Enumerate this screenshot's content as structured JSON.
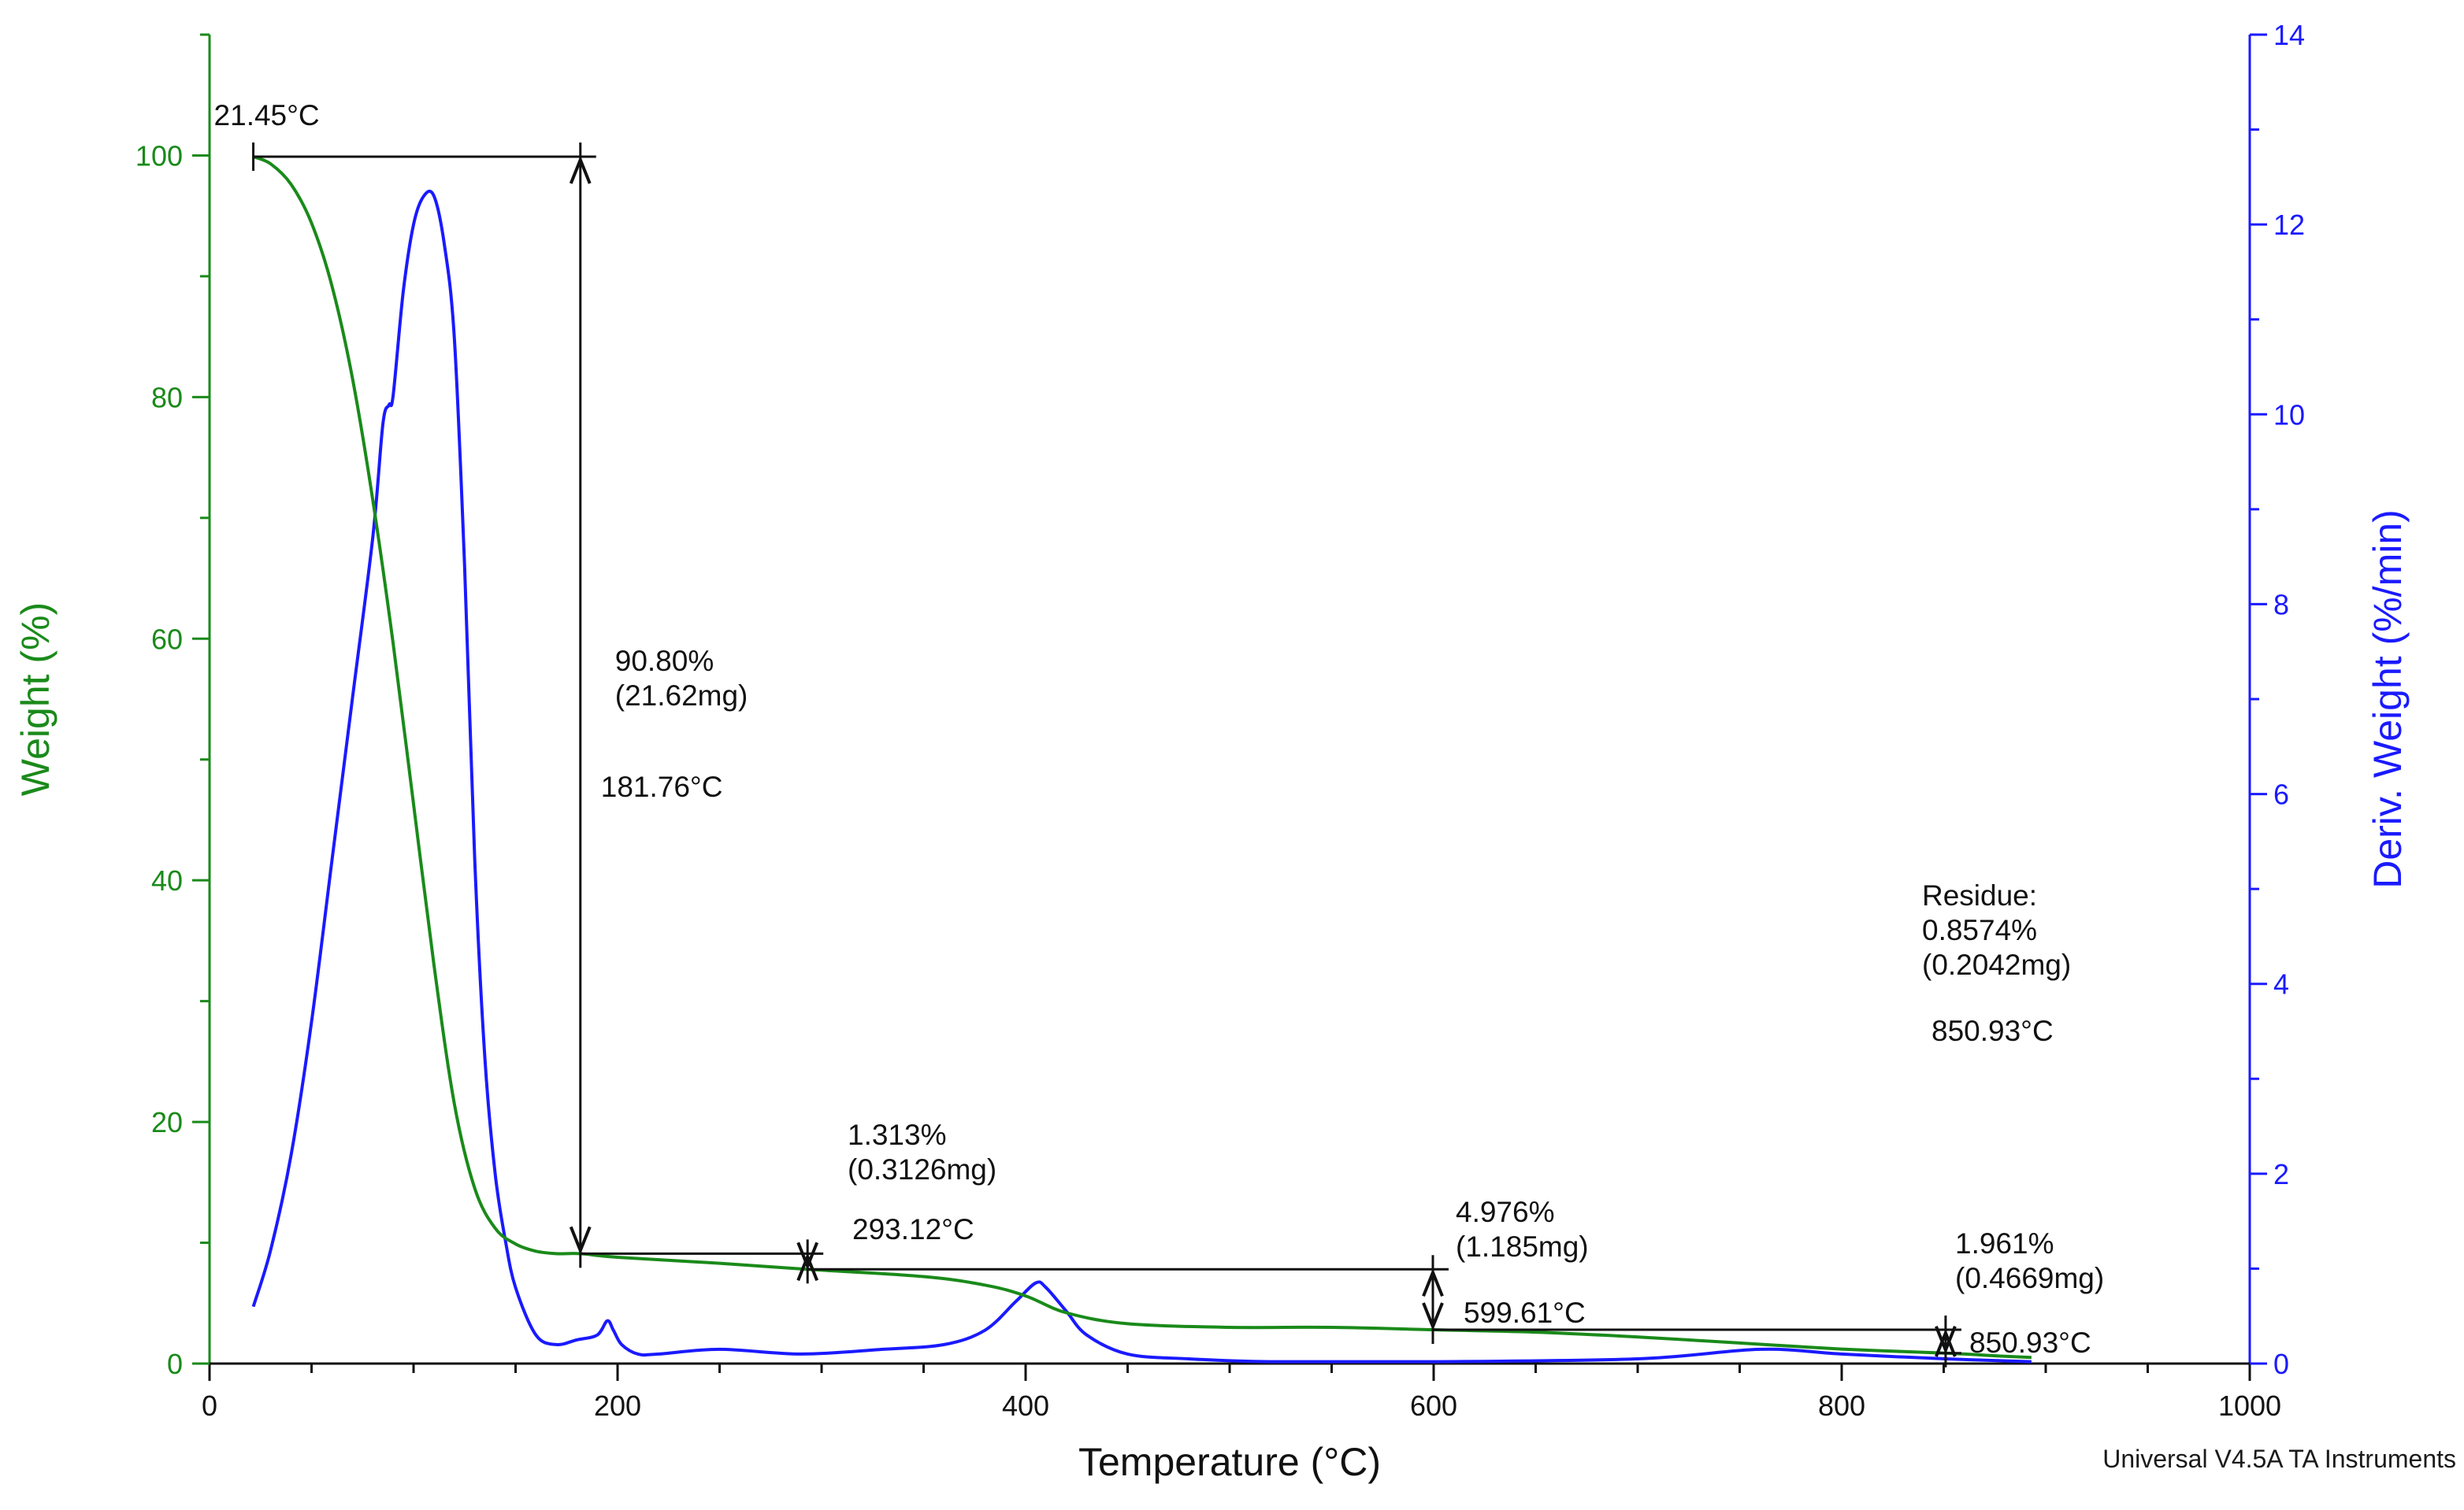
{
  "chart_data": {
    "type": "line",
    "title": "",
    "xlabel": "Temperature (°C)",
    "ylabel_left": "Weight (%)",
    "ylabel_right": "Deriv. Weight (%/min)",
    "xlim": [
      0,
      1000
    ],
    "ylim_left": [
      0,
      110
    ],
    "ylim_right": [
      0,
      14
    ],
    "x_ticks": [
      0,
      200,
      400,
      600,
      800,
      1000
    ],
    "y_left_ticks": [
      0,
      20,
      40,
      60,
      80,
      100
    ],
    "y_right_ticks": [
      0,
      2,
      4,
      6,
      8,
      10,
      12,
      14
    ],
    "grid": false,
    "colors": {
      "weight": "#1a8a1a",
      "deriv": "#1a1aff",
      "annotation": "#111111"
    },
    "series": [
      {
        "name": "Weight (%)",
        "axis": "left",
        "x": [
          21.45,
          30,
          40,
          50,
          60,
          70,
          80,
          90,
          100,
          110,
          120,
          130,
          140,
          150,
          160,
          170,
          181.76,
          200,
          250,
          293.12,
          350,
          380,
          400,
          420,
          450,
          500,
          550,
          599.61,
          650,
          700,
          750,
          800,
          850.93,
          880,
          893
        ],
        "values": [
          99.9,
          99.3,
          97.6,
          94.4,
          89.2,
          81.6,
          71.5,
          59.6,
          46.3,
          33.0,
          21.5,
          14.5,
          11.2,
          9.9,
          9.3,
          9.1,
          9.1,
          8.8,
          8.3,
          7.8,
          7.2,
          6.5,
          5.6,
          4.2,
          3.3,
          3.0,
          3.0,
          2.8,
          2.6,
          2.2,
          1.7,
          1.2,
          0.86,
          0.6,
          0.5
        ]
      },
      {
        "name": "Deriv. Weight (%/min)",
        "axis": "right",
        "x": [
          21.45,
          30,
          40,
          50,
          60,
          70,
          80,
          85,
          88,
          90,
          95,
          100,
          105,
          110,
          115,
          120,
          125,
          130,
          135,
          140,
          145,
          150,
          160,
          170,
          180,
          190,
          195,
          198,
          202,
          210,
          220,
          250,
          290,
          330,
          360,
          380,
          395,
          405,
          410,
          420,
          430,
          450,
          480,
          520,
          600,
          700,
          760,
          800,
          850.93,
          893
        ],
        "values": [
          0.6,
          1.2,
          2.2,
          3.6,
          5.3,
          7.0,
          8.7,
          9.9,
          10.1,
          10.2,
          11.3,
          12.0,
          12.3,
          12.3,
          11.8,
          10.8,
          8.4,
          5.3,
          3.2,
          2.0,
          1.3,
          0.8,
          0.3,
          0.2,
          0.25,
          0.3,
          0.45,
          0.35,
          0.2,
          0.1,
          0.1,
          0.15,
          0.1,
          0.15,
          0.2,
          0.35,
          0.65,
          0.85,
          0.8,
          0.55,
          0.3,
          0.1,
          0.05,
          0.02,
          0.02,
          0.05,
          0.15,
          0.1,
          0.05,
          0.02
        ]
      }
    ],
    "steps": [
      {
        "name": "step1",
        "label_pct": "90.80%",
        "label_mg": "(21.62mg)",
        "label_temp": "181.76°C",
        "x": 181.76,
        "y_top": 99.9,
        "y_bottom": 9.1
      },
      {
        "name": "step2",
        "label_pct": "1.313%",
        "label_mg": "(0.3126mg)",
        "label_temp": "293.12°C",
        "x": 293.12,
        "y_top": 9.1,
        "y_bottom": 7.8
      },
      {
        "name": "step3",
        "label_pct": "4.976%",
        "label_mg": "(1.185mg)",
        "label_temp": "599.61°C",
        "x": 599.61,
        "y_top": 7.8,
        "y_bottom": 2.8
      },
      {
        "name": "step4",
        "label_pct": "1.961%",
        "label_mg": "(0.4669mg)",
        "label_temp": "850.93°C",
        "x": 850.93,
        "y_top": 2.8,
        "y_bottom": 0.86
      }
    ],
    "start_label": "21.45°C",
    "start_x": 21.45,
    "start_y": 99.9,
    "residue": {
      "title": "Residue:",
      "pct": "0.8574%",
      "mg": "(0.2042mg)",
      "temp": "850.93°C"
    },
    "footer": "Universal V4.5A TA Instruments"
  }
}
